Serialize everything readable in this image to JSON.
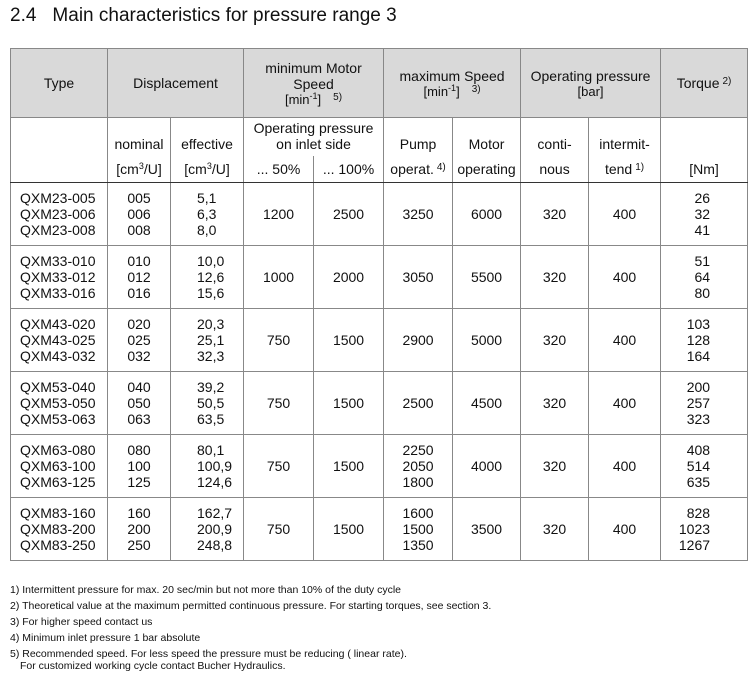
{
  "title": {
    "number": "2.4",
    "text": "Main characteristics for pressure range 3"
  },
  "table": {
    "header": {
      "type": "Type",
      "displacement": "Displacement",
      "min_speed": {
        "label": "minimum Motor Speed",
        "unit": "[min",
        "unit_exp": "-1",
        "unit_end": "]",
        "note": "5)"
      },
      "max_speed": {
        "label": "maximum Speed",
        "unit": "[min",
        "unit_exp": "-1",
        "unit_end": "]",
        "note": "3)"
      },
      "operating_pressure": {
        "label": "Operating pressure",
        "unit": "[bar]"
      },
      "torque": {
        "label": "Torque",
        "note": "2)"
      },
      "nominal": {
        "label": "nominal",
        "unit": "[cm",
        "unit_exp": "3",
        "unit_end": "/U]"
      },
      "effective": {
        "label": "effective",
        "unit": "[cm",
        "unit_exp": "3",
        "unit_end": "/U]"
      },
      "inlet": {
        "label": "Operating pressure on inlet side",
        "col1": "... 50%",
        "col2": "... 100%"
      },
      "pump": {
        "label": "Pump",
        "sub": "operat.",
        "note": "4)"
      },
      "motor": {
        "label": "Motor",
        "sub": "operating"
      },
      "continuous": {
        "label": "conti-",
        "sub": "nous"
      },
      "intermittent": {
        "label": "intermit-",
        "sub": "tend",
        "note": "1)"
      },
      "torque_unit": "[Nm]"
    },
    "groups": [
      {
        "types": [
          "QXM23-005",
          "QXM23-006",
          "QXM23-008"
        ],
        "nominal": [
          "005",
          "006",
          "008"
        ],
        "effective": [
          "5,1",
          "6,3",
          "8,0"
        ],
        "min_50": "1200",
        "min_100": "2500",
        "pump": [
          "3250"
        ],
        "motor": "6000",
        "continuous": "320",
        "intermittent": "400",
        "torque": [
          "26",
          "32",
          "41"
        ]
      },
      {
        "types": [
          "QXM33-010",
          "QXM33-012",
          "QXM33-016"
        ],
        "nominal": [
          "010",
          "012",
          "016"
        ],
        "effective": [
          "10,0",
          "12,6",
          "15,6"
        ],
        "min_50": "1000",
        "min_100": "2000",
        "pump": [
          "3050"
        ],
        "motor": "5500",
        "continuous": "320",
        "intermittent": "400",
        "torque": [
          "51",
          "64",
          "80"
        ]
      },
      {
        "types": [
          "QXM43-020",
          "QXM43-025",
          "QXM43-032"
        ],
        "nominal": [
          "020",
          "025",
          "032"
        ],
        "effective": [
          "20,3",
          "25,1",
          "32,3"
        ],
        "min_50": "750",
        "min_100": "1500",
        "pump": [
          "2900"
        ],
        "motor": "5000",
        "continuous": "320",
        "intermittent": "400",
        "torque": [
          "103",
          "128",
          "164"
        ]
      },
      {
        "types": [
          "QXM53-040",
          "QXM53-050",
          "QXM53-063"
        ],
        "nominal": [
          "040",
          "050",
          "063"
        ],
        "effective": [
          "39,2",
          "50,5",
          "63,5"
        ],
        "min_50": "750",
        "min_100": "1500",
        "pump": [
          "2500"
        ],
        "motor": "4500",
        "continuous": "320",
        "intermittent": "400",
        "torque": [
          "200",
          "257",
          "323"
        ]
      },
      {
        "types": [
          "QXM63-080",
          "QXM63-100",
          "QXM63-125"
        ],
        "nominal": [
          "080",
          "100",
          "125"
        ],
        "effective": [
          "80,1",
          "100,9",
          "124,6"
        ],
        "min_50": "750",
        "min_100": "1500",
        "pump": [
          "2250",
          "2050",
          "1800"
        ],
        "motor": "4000",
        "continuous": "320",
        "intermittent": "400",
        "torque": [
          "408",
          "514",
          "635"
        ]
      },
      {
        "types": [
          "QXM83-160",
          "QXM83-200",
          "QXM83-250"
        ],
        "nominal": [
          "160",
          "200",
          "250"
        ],
        "effective": [
          "162,7",
          "200,9",
          "248,8"
        ],
        "min_50": "750",
        "min_100": "1500",
        "pump": [
          "1600",
          "1500",
          "1350"
        ],
        "motor": "3500",
        "continuous": "320",
        "intermittent": "400",
        "torque": [
          "828",
          "1023",
          "1267"
        ]
      }
    ]
  },
  "footnotes": [
    "1) Intermittent pressure for max. 20 sec/min but not more than 10% of the duty cycle",
    "2) Theoretical value at the maximum permitted continuous pressure. For starting torques, see section 3.",
    "3) For higher speed contact us",
    "4) Minimum inlet pressure 1 bar absolute",
    "5) Recommended speed. For less speed the pressure must be reducing ( linear rate).",
    "For customized working cycle contact Bucher Hydraulics."
  ]
}
